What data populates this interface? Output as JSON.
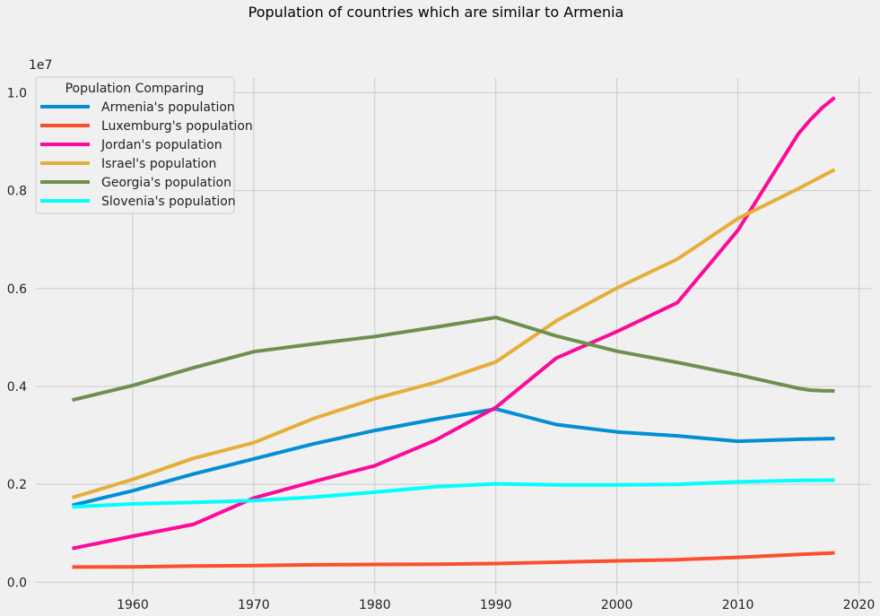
{
  "chart_data": {
    "type": "line",
    "title": "Population of countries which are similar to Armenia",
    "xlabel": "",
    "ylabel": "",
    "y_offset_label": "1e7",
    "xlim": [
      1952,
      2021
    ],
    "ylim": [
      -250000,
      10300000
    ],
    "x_ticks": [
      1960,
      1970,
      1980,
      1990,
      2000,
      2010,
      2020
    ],
    "y_ticks": [
      0,
      2000000,
      4000000,
      6000000,
      8000000,
      10000000
    ],
    "y_tick_labels": [
      "0.0",
      "0.2",
      "0.4",
      "0.6",
      "0.8",
      "1.0"
    ],
    "grid": true,
    "legend": {
      "title": "Population Comparing",
      "placement": "top-left"
    },
    "series": [
      {
        "name": "Armenia's population",
        "color": "#008fd5",
        "points": [
          [
            1955,
            1570000
          ],
          [
            1960,
            1870000
          ],
          [
            1965,
            2210000
          ],
          [
            1970,
            2520000
          ],
          [
            1975,
            2830000
          ],
          [
            1980,
            3100000
          ],
          [
            1985,
            3330000
          ],
          [
            1990,
            3540000
          ],
          [
            1995,
            3220000
          ],
          [
            2000,
            3070000
          ],
          [
            2005,
            2990000
          ],
          [
            2010,
            2880000
          ],
          [
            2015,
            2920000
          ],
          [
            2018,
            2935000
          ]
        ]
      },
      {
        "name": "Luxemburg's population",
        "color": "#fc4f30",
        "points": [
          [
            1955,
            310000
          ],
          [
            1960,
            315000
          ],
          [
            1965,
            332000
          ],
          [
            1970,
            339000
          ],
          [
            1975,
            357000
          ],
          [
            1980,
            364000
          ],
          [
            1985,
            368000
          ],
          [
            1990,
            382000
          ],
          [
            1995,
            410000
          ],
          [
            2000,
            436000
          ],
          [
            2005,
            460000
          ],
          [
            2010,
            508000
          ],
          [
            2015,
            567000
          ],
          [
            2018,
            600000
          ]
        ]
      },
      {
        "name": "Jordan's population",
        "color": "#ff0a9a",
        "points": [
          [
            1955,
            690000
          ],
          [
            1960,
            940000
          ],
          [
            1965,
            1180000
          ],
          [
            1970,
            1720000
          ],
          [
            1975,
            2060000
          ],
          [
            1980,
            2380000
          ],
          [
            1985,
            2900000
          ],
          [
            1990,
            3570000
          ],
          [
            1995,
            4580000
          ],
          [
            2000,
            5120000
          ],
          [
            2005,
            5710000
          ],
          [
            2010,
            7190000
          ],
          [
            2015,
            9160000
          ],
          [
            2016,
            9450000
          ],
          [
            2017,
            9700000
          ],
          [
            2018,
            9900000
          ]
        ]
      },
      {
        "name": "Israel's population",
        "color": "#e5ae38",
        "points": [
          [
            1955,
            1730000
          ],
          [
            1960,
            2100000
          ],
          [
            1965,
            2530000
          ],
          [
            1970,
            2850000
          ],
          [
            1975,
            3350000
          ],
          [
            1980,
            3750000
          ],
          [
            1985,
            4080000
          ],
          [
            1990,
            4500000
          ],
          [
            1995,
            5340000
          ],
          [
            2000,
            6010000
          ],
          [
            2005,
            6600000
          ],
          [
            2010,
            7430000
          ],
          [
            2015,
            8040000
          ],
          [
            2018,
            8430000
          ]
        ]
      },
      {
        "name": "Georgia's population",
        "color": "#6d904f",
        "points": [
          [
            1955,
            3720000
          ],
          [
            1960,
            4020000
          ],
          [
            1965,
            4380000
          ],
          [
            1970,
            4710000
          ],
          [
            1975,
            4870000
          ],
          [
            1980,
            5020000
          ],
          [
            1985,
            5210000
          ],
          [
            1990,
            5410000
          ],
          [
            1995,
            5030000
          ],
          [
            2000,
            4720000
          ],
          [
            2005,
            4490000
          ],
          [
            2010,
            4240000
          ],
          [
            2015,
            3960000
          ],
          [
            2016,
            3925000
          ],
          [
            2017,
            3912000
          ],
          [
            2018,
            3907000
          ]
        ]
      },
      {
        "name": "Slovenia's population",
        "color": "#00ffff",
        "points": [
          [
            1955,
            1540000
          ],
          [
            1960,
            1600000
          ],
          [
            1965,
            1630000
          ],
          [
            1970,
            1670000
          ],
          [
            1975,
            1740000
          ],
          [
            1980,
            1840000
          ],
          [
            1985,
            1950000
          ],
          [
            1990,
            2010000
          ],
          [
            1995,
            1990000
          ],
          [
            2000,
            1990000
          ],
          [
            2005,
            2000000
          ],
          [
            2010,
            2050000
          ],
          [
            2015,
            2080000
          ],
          [
            2018,
            2085000
          ]
        ]
      }
    ]
  }
}
